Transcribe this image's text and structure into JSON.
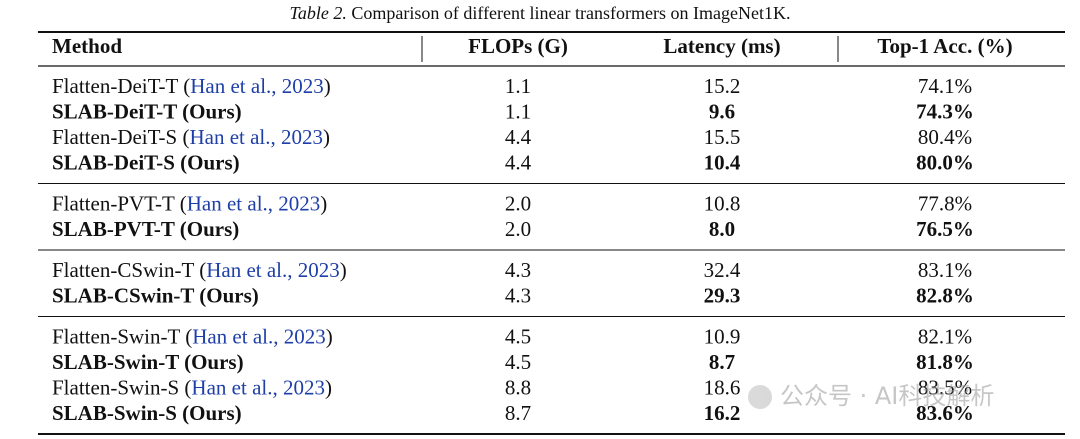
{
  "caption": {
    "label": "Table 2.",
    "text": " Comparison of different linear transformers on ImageNet1K."
  },
  "table": {
    "header": [
      "Method",
      "FLOPs (G)",
      "Latency (ms)",
      "Top-1 Acc. (%)"
    ],
    "groups": [
      {
        "rows": [
          {
            "method": {
              "prefix": "Flatten-DeiT-T (",
              "cite": "Han et al., 2023",
              "suffix": ")"
            },
            "flops": "1.1",
            "latency": "15.2",
            "acc": "74.1%",
            "bold": false
          },
          {
            "method": {
              "prefix": "SLAB-DeiT-T (Ours)"
            },
            "flops": "1.1",
            "latency": "9.6",
            "acc": "74.3%",
            "bold": true
          },
          {
            "method": {
              "prefix": "Flatten-DeiT-S (",
              "cite": "Han et al., 2023",
              "suffix": ")"
            },
            "flops": "4.4",
            "latency": "15.5",
            "acc": "80.4%",
            "bold": false
          },
          {
            "method": {
              "prefix": "SLAB-DeiT-S (Ours)"
            },
            "flops": "4.4",
            "latency": "10.4",
            "acc": "80.0%",
            "bold": true
          }
        ]
      },
      {
        "rows": [
          {
            "method": {
              "prefix": "Flatten-PVT-T (",
              "cite": "Han et al., 2023",
              "suffix": ")"
            },
            "flops": "2.0",
            "latency": "10.8",
            "acc": "77.8%",
            "bold": false
          },
          {
            "method": {
              "prefix": "SLAB-PVT-T (Ours)"
            },
            "flops": "2.0",
            "latency": "8.0",
            "acc": "76.5%",
            "bold": true
          }
        ]
      },
      {
        "rows": [
          {
            "method": {
              "prefix": "Flatten-CSwin-T (",
              "cite": "Han et al., 2023",
              "suffix": ")"
            },
            "flops": "4.3",
            "latency": "32.4",
            "acc": "83.1%",
            "bold": false
          },
          {
            "method": {
              "prefix": "SLAB-CSwin-T (Ours)"
            },
            "flops": "4.3",
            "latency": "29.3",
            "acc": "82.8%",
            "bold": true
          }
        ]
      },
      {
        "rows": [
          {
            "method": {
              "prefix": "Flatten-Swin-T (",
              "cite": "Han et al., 2023",
              "suffix": ")"
            },
            "flops": "4.5",
            "latency": "10.9",
            "acc": "82.1%",
            "bold": false
          },
          {
            "method": {
              "prefix": "SLAB-Swin-T (Ours)"
            },
            "flops": "4.5",
            "latency": "8.7",
            "acc": "81.8%",
            "bold": true
          },
          {
            "method": {
              "prefix": "Flatten-Swin-S (",
              "cite": "Han et al., 2023",
              "suffix": ")"
            },
            "flops": "8.8",
            "latency": "18.6",
            "acc": "83.5%",
            "bold": false
          },
          {
            "method": {
              "prefix": "SLAB-Swin-S (Ours)"
            },
            "flops": "8.7",
            "latency": "16.2",
            "acc": "83.6%",
            "bold": true
          }
        ]
      }
    ]
  },
  "watermark": "公众号 · AI科技解析"
}
